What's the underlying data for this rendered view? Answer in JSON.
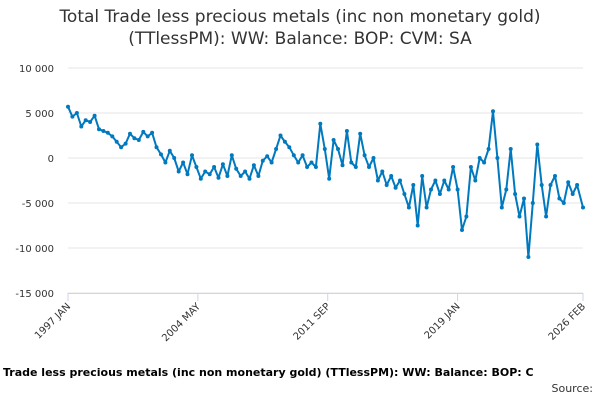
{
  "chart_data": {
    "type": "line",
    "title_lines": [
      "Total Trade less precious metals (inc non monetary gold)",
      "(TTlessPM): WW: Balance: BOP: CVM: SA"
    ],
    "xlabel": "",
    "ylabel": "",
    "ylim": [
      -15000,
      10000
    ],
    "xlim": [
      "1997 JAN",
      "2026 FEB"
    ],
    "y_ticks": [
      {
        "value": 10000,
        "label": "10 000"
      },
      {
        "value": 5000,
        "label": "5 000"
      },
      {
        "value": 0,
        "label": "0"
      },
      {
        "value": -5000,
        "label": "-5 000"
      },
      {
        "value": -10000,
        "label": "-10 000"
      },
      {
        "value": -15000,
        "label": "-15 000"
      }
    ],
    "x_ticks": [
      {
        "value": "1997-01",
        "label": "1997 JAN"
      },
      {
        "value": "2004-05",
        "label": "2004 MAY"
      },
      {
        "value": "2011-09",
        "label": "2011 SEP"
      },
      {
        "value": "2019-01",
        "label": "2019 JAN"
      },
      {
        "value": "2026-02",
        "label": "2026 FEB"
      }
    ],
    "grid": true,
    "legend": "none",
    "series": [
      {
        "color": "#0079bf",
        "points": [
          [
            "1997-01",
            5700
          ],
          [
            "1997-04",
            4600
          ],
          [
            "1997-07",
            5000
          ],
          [
            "1997-10",
            3500
          ],
          [
            "1998-01",
            4200
          ],
          [
            "1998-04",
            4000
          ],
          [
            "1998-07",
            4700
          ],
          [
            "1998-10",
            3200
          ],
          [
            "1999-01",
            3000
          ],
          [
            "1999-04",
            2800
          ],
          [
            "1999-07",
            2400
          ],
          [
            "1999-10",
            1800
          ],
          [
            "2000-01",
            1200
          ],
          [
            "2000-04",
            1600
          ],
          [
            "2000-07",
            2700
          ],
          [
            "2000-10",
            2200
          ],
          [
            "2001-01",
            2000
          ],
          [
            "2001-04",
            2900
          ],
          [
            "2001-07",
            2400
          ],
          [
            "2001-10",
            2800
          ],
          [
            "2002-01",
            1200
          ],
          [
            "2002-04",
            400
          ],
          [
            "2002-07",
            -500
          ],
          [
            "2002-10",
            800
          ],
          [
            "2003-01",
            0
          ],
          [
            "2003-04",
            -1500
          ],
          [
            "2003-07",
            -500
          ],
          [
            "2003-10",
            -1800
          ],
          [
            "2004-01",
            300
          ],
          [
            "2004-04",
            -1000
          ],
          [
            "2004-07",
            -2300
          ],
          [
            "2004-10",
            -1500
          ],
          [
            "2005-01",
            -1800
          ],
          [
            "2005-04",
            -1000
          ],
          [
            "2005-07",
            -2200
          ],
          [
            "2005-10",
            -700
          ],
          [
            "2006-01",
            -2000
          ],
          [
            "2006-04",
            300
          ],
          [
            "2006-07",
            -1200
          ],
          [
            "2006-10",
            -2000
          ],
          [
            "2007-01",
            -1500
          ],
          [
            "2007-04",
            -2300
          ],
          [
            "2007-07",
            -800
          ],
          [
            "2007-10",
            -2000
          ],
          [
            "2008-01",
            -300
          ],
          [
            "2008-04",
            200
          ],
          [
            "2008-07",
            -500
          ],
          [
            "2008-10",
            1000
          ],
          [
            "2009-01",
            2500
          ],
          [
            "2009-04",
            1800
          ],
          [
            "2009-07",
            1200
          ],
          [
            "2009-10",
            300
          ],
          [
            "2010-01",
            -500
          ],
          [
            "2010-04",
            300
          ],
          [
            "2010-07",
            -1000
          ],
          [
            "2010-10",
            -500
          ],
          [
            "2011-01",
            -1000
          ],
          [
            "2011-04",
            3800
          ],
          [
            "2011-07",
            1000
          ],
          [
            "2011-10",
            -2300
          ],
          [
            "2012-01",
            2000
          ],
          [
            "2012-04",
            1000
          ],
          [
            "2012-07",
            -800
          ],
          [
            "2012-10",
            3000
          ],
          [
            "2013-01",
            -500
          ],
          [
            "2013-04",
            -1000
          ],
          [
            "2013-07",
            2700
          ],
          [
            "2013-10",
            300
          ],
          [
            "2014-01",
            -1000
          ],
          [
            "2014-04",
            0
          ],
          [
            "2014-07",
            -2500
          ],
          [
            "2014-10",
            -1500
          ],
          [
            "2015-01",
            -3000
          ],
          [
            "2015-04",
            -2000
          ],
          [
            "2015-07",
            -3300
          ],
          [
            "2015-10",
            -2500
          ],
          [
            "2016-01",
            -4000
          ],
          [
            "2016-04",
            -5500
          ],
          [
            "2016-07",
            -3000
          ],
          [
            "2016-10",
            -7500
          ],
          [
            "2017-01",
            -2000
          ],
          [
            "2017-04",
            -5500
          ],
          [
            "2017-07",
            -3500
          ],
          [
            "2017-10",
            -2500
          ],
          [
            "2018-01",
            -4000
          ],
          [
            "2018-04",
            -2500
          ],
          [
            "2018-07",
            -3500
          ],
          [
            "2018-10",
            -1000
          ],
          [
            "2019-01",
            -3500
          ],
          [
            "2019-04",
            -8000
          ],
          [
            "2019-07",
            -6500
          ],
          [
            "2019-10",
            -1000
          ],
          [
            "2020-01",
            -2500
          ],
          [
            "2020-04",
            0
          ],
          [
            "2020-07",
            -500
          ],
          [
            "2020-10",
            1000
          ],
          [
            "2021-01",
            5200
          ],
          [
            "2021-04",
            0
          ],
          [
            "2021-07",
            -5500
          ],
          [
            "2021-10",
            -3500
          ],
          [
            "2022-01",
            1000
          ],
          [
            "2022-04",
            -4000
          ],
          [
            "2022-07",
            -6500
          ],
          [
            "2022-10",
            -4500
          ],
          [
            "2023-01",
            -11000
          ],
          [
            "2023-04",
            -5000
          ],
          [
            "2023-07",
            1500
          ],
          [
            "2023-10",
            -3000
          ],
          [
            "2024-01",
            -6500
          ],
          [
            "2024-04",
            -3000
          ],
          [
            "2024-07",
            -2000
          ],
          [
            "2024-10",
            -4500
          ],
          [
            "2025-01",
            -5000
          ],
          [
            "2025-04",
            -2700
          ],
          [
            "2025-07",
            -4000
          ],
          [
            "2025-10",
            -3000
          ],
          [
            "2026-02",
            -5500
          ]
        ]
      }
    ]
  },
  "footer": {
    "series_label": "Trade less precious metals (inc non monetary gold) (TTlessPM): WW: Balance: BOP: C",
    "source_label": "Source:"
  }
}
